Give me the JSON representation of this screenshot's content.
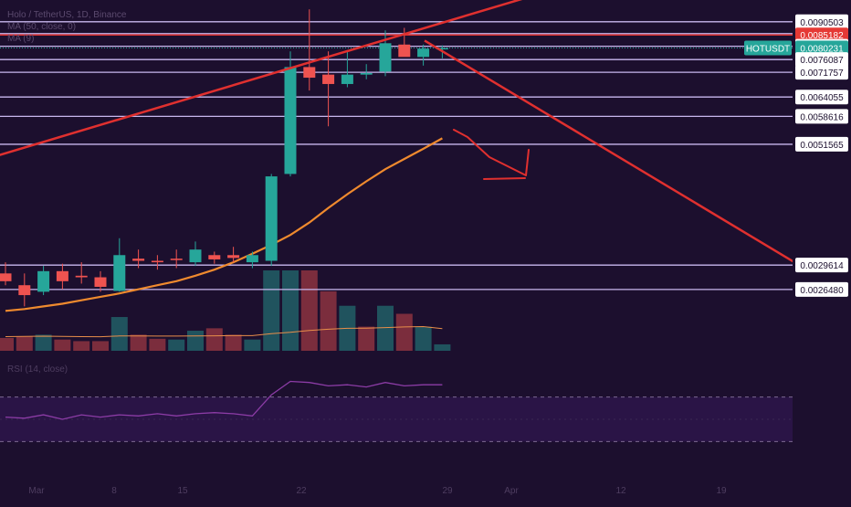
{
  "header": {
    "title": "Holo / TetherUS, 1D, Binance",
    "indicator1": "MA (50, close, 0)",
    "indicator2": "MA (9)"
  },
  "rsi_label": "RSI (14, close)",
  "colors": {
    "background": "#1c0f2e",
    "up": "#26a69a",
    "down": "#ef5350",
    "level_line": "#c8b7ee",
    "trend_line": "#e0302f",
    "ma": "#ef8a2e",
    "vol_ma": "#e88e4a",
    "rsi": "#8c3ca6",
    "rsi_band": "#2a1446",
    "last_price_label": "#26a69a",
    "highlight_label": "#e53935"
  },
  "chart_data": {
    "type": "candlestick",
    "price_axis": {
      "scale": "log",
      "range": [
        0.0019,
        0.01
      ],
      "tick_labels": [
        "0.0090503",
        "0.0085704",
        "0.0085182",
        "0.0080882",
        "0.0080231",
        "0.0076087",
        "0.0071757",
        "0.0064055",
        "0.0058616",
        "0.0051565",
        "0.0029614",
        "0.0026480"
      ]
    },
    "price_levels": [
      0.0090503,
      0.0085704,
      0.0080882,
      0.0076087,
      0.0071757,
      0.0064055,
      0.0058616,
      0.0051565,
      0.0029614,
      0.002648
    ],
    "highlight_level": 0.0085182,
    "last_price": {
      "symbol": "HOTUSDT",
      "value": "0.0080231"
    },
    "candles": [
      {
        "o": 0.00285,
        "h": 0.003,
        "l": 0.0027,
        "c": 0.00275
      },
      {
        "o": 0.0027,
        "h": 0.00285,
        "l": 0.00245,
        "c": 0.00258
      },
      {
        "o": 0.00262,
        "h": 0.00295,
        "l": 0.00258,
        "c": 0.00288
      },
      {
        "o": 0.00288,
        "h": 0.00298,
        "l": 0.00265,
        "c": 0.00275
      },
      {
        "o": 0.00282,
        "h": 0.003,
        "l": 0.00272,
        "c": 0.0028
      },
      {
        "o": 0.0028,
        "h": 0.00288,
        "l": 0.00262,
        "c": 0.00268
      },
      {
        "o": 0.00263,
        "h": 0.00335,
        "l": 0.00262,
        "c": 0.0031
      },
      {
        "o": 0.00305,
        "h": 0.00318,
        "l": 0.00292,
        "c": 0.00302
      },
      {
        "o": 0.00302,
        "h": 0.0031,
        "l": 0.0029,
        "c": 0.003
      },
      {
        "o": 0.00305,
        "h": 0.00318,
        "l": 0.00292,
        "c": 0.00303
      },
      {
        "o": 0.003,
        "h": 0.0033,
        "l": 0.00295,
        "c": 0.00318
      },
      {
        "o": 0.0031,
        "h": 0.00315,
        "l": 0.00298,
        "c": 0.00304
      },
      {
        "o": 0.0031,
        "h": 0.00322,
        "l": 0.003,
        "c": 0.00306
      },
      {
        "o": 0.003,
        "h": 0.00315,
        "l": 0.00292,
        "c": 0.0031
      },
      {
        "o": 0.00302,
        "h": 0.0045,
        "l": 0.00295,
        "c": 0.00445
      },
      {
        "o": 0.0045,
        "h": 0.0079,
        "l": 0.00445,
        "c": 0.00735
      },
      {
        "o": 0.00735,
        "h": 0.00958,
        "l": 0.0066,
        "c": 0.007
      },
      {
        "o": 0.0071,
        "h": 0.0079,
        "l": 0.0056,
        "c": 0.0068
      },
      {
        "o": 0.0068,
        "h": 0.0079,
        "l": 0.0067,
        "c": 0.0071
      },
      {
        "o": 0.0071,
        "h": 0.00745,
        "l": 0.00695,
        "c": 0.00715
      },
      {
        "o": 0.0072,
        "h": 0.0087,
        "l": 0.00705,
        "c": 0.0082
      },
      {
        "o": 0.00815,
        "h": 0.0088,
        "l": 0.00775,
        "c": 0.0077
      },
      {
        "o": 0.0077,
        "h": 0.00815,
        "l": 0.0074,
        "c": 0.008
      },
      {
        "o": 0.008,
        "h": 0.00812,
        "l": 0.00765,
        "c": 0.00802
      }
    ],
    "ma_line": [
      0.0024,
      0.00242,
      0.00245,
      0.00248,
      0.00252,
      0.00256,
      0.0026,
      0.00265,
      0.0027,
      0.00275,
      0.00282,
      0.0029,
      0.003,
      0.00312,
      0.00325,
      0.0034,
      0.0036,
      0.00385,
      0.0041,
      0.00435,
      0.0046,
      0.00482,
      0.00505,
      0.0053
    ],
    "volume": [
      {
        "v": 0.16,
        "dir": "down"
      },
      {
        "v": 0.18,
        "dir": "down"
      },
      {
        "v": 0.2,
        "dir": "up"
      },
      {
        "v": 0.14,
        "dir": "down"
      },
      {
        "v": 0.12,
        "dir": "down"
      },
      {
        "v": 0.12,
        "dir": "down"
      },
      {
        "v": 0.42,
        "dir": "up"
      },
      {
        "v": 0.2,
        "dir": "down"
      },
      {
        "v": 0.15,
        "dir": "down"
      },
      {
        "v": 0.14,
        "dir": "up"
      },
      {
        "v": 0.25,
        "dir": "up"
      },
      {
        "v": 0.28,
        "dir": "down"
      },
      {
        "v": 0.2,
        "dir": "down"
      },
      {
        "v": 0.14,
        "dir": "up"
      },
      {
        "v": 1.0,
        "dir": "up"
      },
      {
        "v": 1.0,
        "dir": "up"
      },
      {
        "v": 1.0,
        "dir": "down"
      },
      {
        "v": 0.74,
        "dir": "down"
      },
      {
        "v": 0.56,
        "dir": "up"
      },
      {
        "v": 0.3,
        "dir": "down"
      },
      {
        "v": 0.56,
        "dir": "up"
      },
      {
        "v": 0.46,
        "dir": "down"
      },
      {
        "v": 0.3,
        "dir": "up"
      },
      {
        "v": 0.08,
        "dir": "up"
      }
    ],
    "rsi": [
      52,
      51,
      54,
      50,
      54,
      52,
      54,
      53,
      55,
      53,
      55,
      56,
      55,
      53,
      72,
      84,
      83,
      80,
      81,
      79,
      83,
      80,
      81,
      81
    ],
    "rsi_range": [
      0,
      100
    ],
    "rsi_bands": [
      70,
      30
    ]
  },
  "drawings": {
    "trend_up": {
      "x1": -10,
      "p1": 0.00485,
      "x2": 700,
      "p2": 0.0118
    },
    "trend_down": {
      "x1": 465,
      "p1": 0.0083,
      "x2": 870,
      "p2": 0.003
    }
  },
  "x_axis_labels": [
    "Mar",
    "8",
    "15",
    "22",
    "29",
    "Apr",
    "12",
    "19"
  ]
}
